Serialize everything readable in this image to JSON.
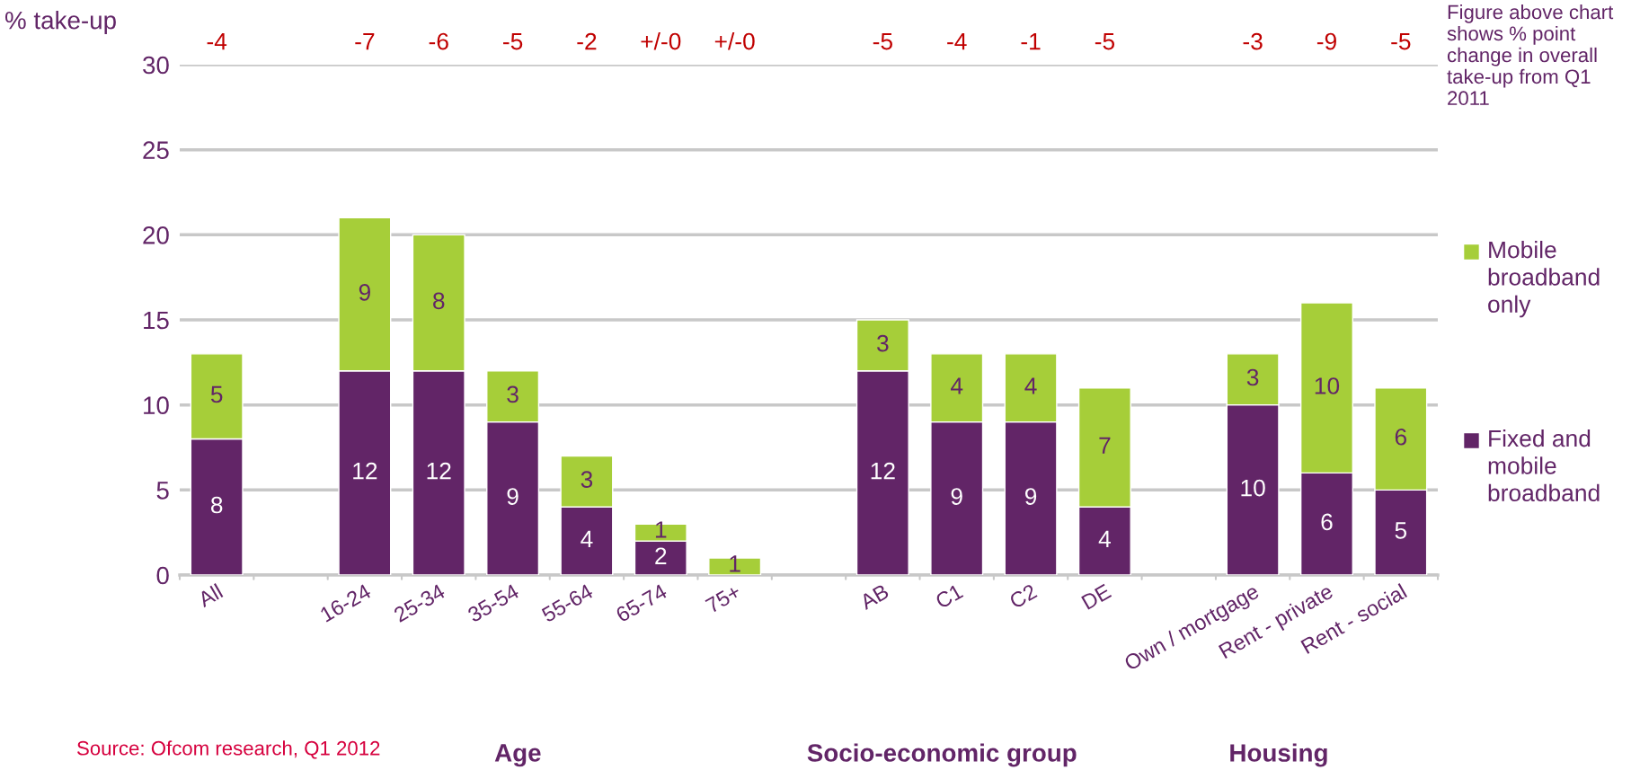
{
  "chart_data": {
    "type": "bar",
    "stacked": true,
    "ylabel": "% take-up",
    "categories": [
      "All",
      null,
      "16-24",
      "25-34",
      "35-54",
      "55-64",
      "65-74",
      "75+",
      null,
      "AB",
      "C1",
      "C2",
      "DE",
      null,
      "Own / mortgage",
      "Rent - private",
      "Rent - social"
    ],
    "series": [
      {
        "name": "Fixed and mobile broadband",
        "color": "#622567",
        "values": [
          8,
          null,
          12,
          12,
          9,
          4,
          2,
          0,
          null,
          12,
          9,
          9,
          4,
          null,
          10,
          6,
          5
        ],
        "value_labels": [
          "8",
          null,
          "12",
          "12",
          "9",
          "4",
          "2",
          null,
          null,
          "12",
          "9",
          "9",
          "4",
          null,
          "10",
          "6",
          "5"
        ]
      },
      {
        "name": "Mobile broadband only",
        "color": "#a6ce39",
        "values": [
          5,
          null,
          9,
          8,
          3,
          3,
          1,
          1,
          null,
          3,
          4,
          4,
          7,
          null,
          3,
          10,
          6
        ],
        "value_labels": [
          "5",
          null,
          "9",
          "8",
          "3",
          "3",
          "1",
          "1",
          null,
          "3",
          "4",
          "4",
          "7",
          null,
          "3",
          "10",
          "6"
        ]
      }
    ],
    "ylim": [
      0,
      30
    ],
    "yticks": [
      0,
      5,
      10,
      15,
      20,
      25,
      30
    ],
    "grid": "y",
    "legend": "right",
    "annotations": [
      "-4",
      "-7",
      "-6",
      "-5",
      "-2",
      "+/-0",
      "+/-0",
      "-5",
      "-4",
      "-1",
      "-5",
      "-3",
      "-9",
      "-5",
      "Age",
      "Socio-economic group",
      "Housing",
      "Figure above chart shows % point change in overall take-up from Q1 2011",
      "Source: Ofcom research, Q1 2012"
    ]
  }
}
